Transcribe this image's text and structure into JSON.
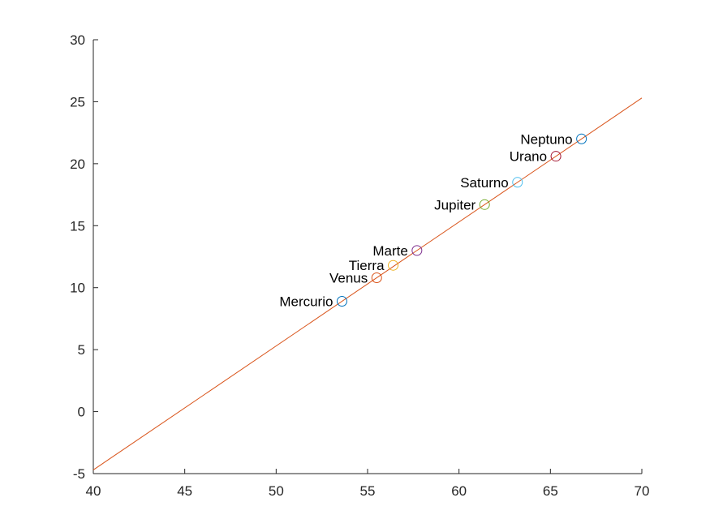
{
  "chart_data": {
    "type": "scatter",
    "title": "",
    "xlabel": "",
    "ylabel": "",
    "xlim": [
      40,
      70
    ],
    "ylim": [
      -5,
      30
    ],
    "xticks": [
      "40",
      "45",
      "50",
      "55",
      "60",
      "65",
      "70"
    ],
    "yticks": [
      "-5",
      "0",
      "5",
      "10",
      "15",
      "20",
      "25",
      "30"
    ],
    "grid": false,
    "legend": "none",
    "points": [
      {
        "label": "Mercurio",
        "x": 53.6,
        "y": 8.9,
        "color": "#0072bd"
      },
      {
        "label": "Venus",
        "x": 55.5,
        "y": 10.8,
        "color": "#d95319"
      },
      {
        "label": "Tierra",
        "x": 56.4,
        "y": 11.8,
        "color": "#edb120"
      },
      {
        "label": "Marte",
        "x": 57.7,
        "y": 13.0,
        "color": "#7e2f8e"
      },
      {
        "label": "Jupiter",
        "x": 61.4,
        "y": 16.7,
        "color": "#77ac30"
      },
      {
        "label": "Saturno",
        "x": 63.2,
        "y": 18.5,
        "color": "#4dbeee"
      },
      {
        "label": "Urano",
        "x": 65.3,
        "y": 20.6,
        "color": "#a2142f"
      },
      {
        "label": "Neptuno",
        "x": 66.7,
        "y": 22.0,
        "color": "#0072bd"
      }
    ],
    "fit_line": {
      "x": [
        40,
        70
      ],
      "y": [
        -4.7,
        25.3
      ],
      "color": "#d95319"
    }
  }
}
